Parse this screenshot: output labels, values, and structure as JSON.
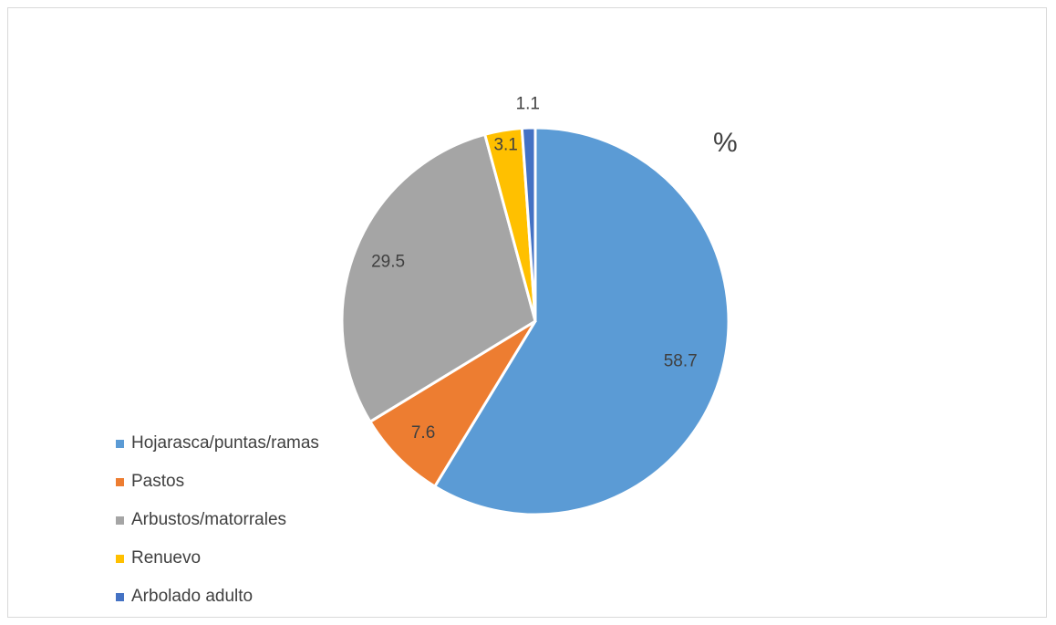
{
  "chart_data": {
    "type": "pie",
    "title": "%",
    "categories": [
      "Hojarasca/puntas/ramas",
      "Pastos",
      "Arbustos/matorrales",
      "Renuevo",
      "Arbolado adulto"
    ],
    "values": [
      58.7,
      7.6,
      29.5,
      3.1,
      1.1
    ],
    "data_labels": [
      "58.7",
      "7.6",
      "29.5",
      "3.1",
      "1.1"
    ],
    "colors": [
      "#5b9bd5",
      "#ed7d31",
      "#a5a5a5",
      "#ffc000",
      "#4472c4"
    ],
    "start_angle": "12 o'clock",
    "direction": "clockwise",
    "legend_position": "left"
  }
}
